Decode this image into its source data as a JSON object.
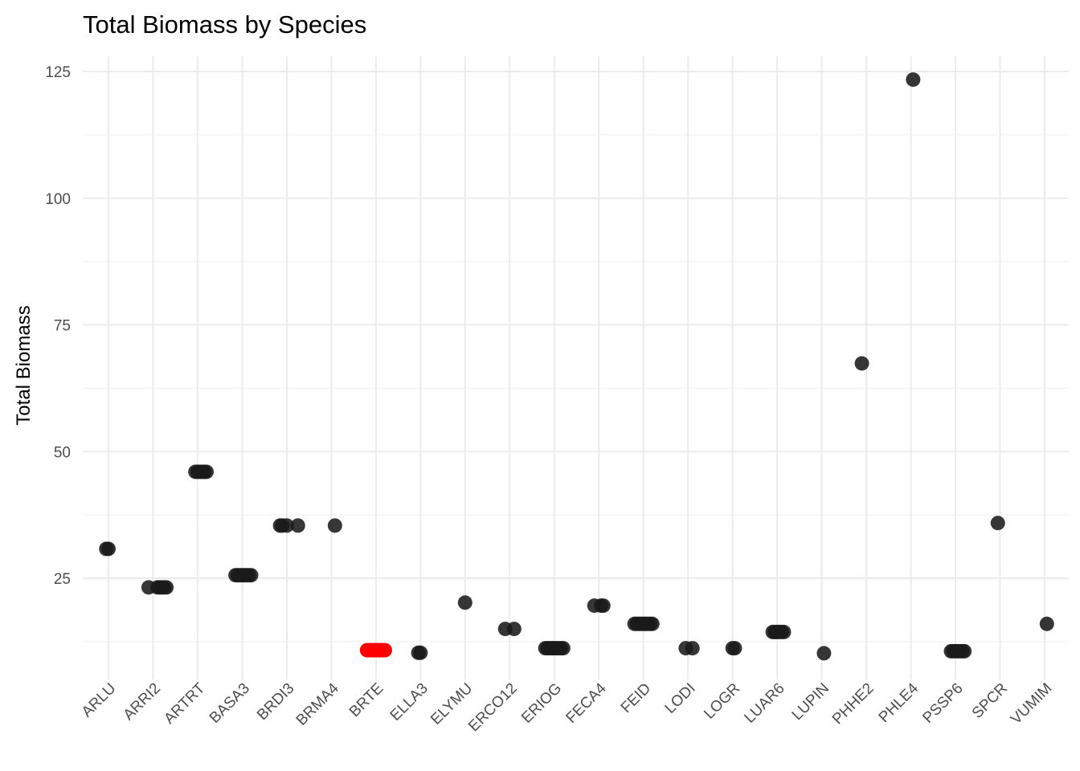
{
  "chart_data": {
    "type": "scatter",
    "title": "Total Biomass by Species",
    "xlabel": "",
    "ylabel": "Total Biomass",
    "ylim": [
      5,
      128
    ],
    "y_ticks": [
      25,
      50,
      75,
      100,
      125
    ],
    "y_tick_labels": [
      "25",
      "50",
      "75",
      "100",
      "125"
    ],
    "grid": true,
    "legend": "none",
    "colors": {
      "default": "#1a1a1a",
      "highlight": "#ff0000"
    },
    "categories": [
      "ARLU",
      "ARRI2",
      "ARTRT",
      "BASA3",
      "BRDI3",
      "BRMA4",
      "BRTE",
      "ELLA3",
      "ELYMU",
      "ERCO12",
      "ERIOG",
      "FECA4",
      "FEID",
      "LODI",
      "LOGR",
      "LUAR6",
      "LUPIN",
      "PHHE2",
      "PHLE4",
      "PSSP6",
      "SPCR",
      "VUMIM"
    ],
    "points": [
      {
        "category": "ARLU",
        "y": 30.8,
        "jitter": -0.05
      },
      {
        "category": "ARLU",
        "y": 30.8,
        "jitter": 0.0
      },
      {
        "category": "ARRI2",
        "y": 23.2,
        "jitter": -0.1
      },
      {
        "category": "ARRI2",
        "y": 23.2,
        "jitter": 0.1
      },
      {
        "category": "ARRI2",
        "y": 23.2,
        "jitter": 0.15
      },
      {
        "category": "ARRI2",
        "y": 23.2,
        "jitter": 0.2
      },
      {
        "category": "ARRI2",
        "y": 23.2,
        "jitter": 0.25
      },
      {
        "category": "ARRI2",
        "y": 23.2,
        "jitter": 0.3
      },
      {
        "category": "ARTRT",
        "y": 46.0,
        "jitter": -0.05
      },
      {
        "category": "ARTRT",
        "y": 46.0,
        "jitter": 0.0
      },
      {
        "category": "ARTRT",
        "y": 46.0,
        "jitter": 0.05
      },
      {
        "category": "ARTRT",
        "y": 46.0,
        "jitter": 0.1
      },
      {
        "category": "ARTRT",
        "y": 46.0,
        "jitter": 0.15
      },
      {
        "category": "ARTRT",
        "y": 46.0,
        "jitter": 0.2
      },
      {
        "category": "BASA3",
        "y": 25.6,
        "jitter": -0.15
      },
      {
        "category": "BASA3",
        "y": 25.6,
        "jitter": -0.1
      },
      {
        "category": "BASA3",
        "y": 25.6,
        "jitter": -0.05
      },
      {
        "category": "BASA3",
        "y": 25.6,
        "jitter": 0.0
      },
      {
        "category": "BASA3",
        "y": 25.6,
        "jitter": 0.05
      },
      {
        "category": "BASA3",
        "y": 25.6,
        "jitter": 0.1
      },
      {
        "category": "BASA3",
        "y": 25.6,
        "jitter": 0.15
      },
      {
        "category": "BASA3",
        "y": 25.6,
        "jitter": 0.2
      },
      {
        "category": "BRDI3",
        "y": 35.4,
        "jitter": -0.15
      },
      {
        "category": "BRDI3",
        "y": 35.4,
        "jitter": -0.1
      },
      {
        "category": "BRDI3",
        "y": 35.4,
        "jitter": 0.0
      },
      {
        "category": "BRDI3",
        "y": 35.4,
        "jitter": 0.25
      },
      {
        "category": "BRMA4",
        "y": 35.4,
        "jitter": 0.08
      },
      {
        "category": "BRTE",
        "y": 10.8,
        "jitter": -0.2
      },
      {
        "category": "BRTE",
        "y": 10.8,
        "jitter": -0.15
      },
      {
        "category": "BRTE",
        "y": 10.8,
        "jitter": -0.1
      },
      {
        "category": "BRTE",
        "y": 10.8,
        "jitter": -0.05
      },
      {
        "category": "BRTE",
        "y": 10.8,
        "jitter": 0.0
      },
      {
        "category": "BRTE",
        "y": 10.8,
        "jitter": 0.05
      },
      {
        "category": "BRTE",
        "y": 10.8,
        "jitter": 0.1
      },
      {
        "category": "BRTE",
        "y": 10.8,
        "jitter": 0.15
      },
      {
        "category": "BRTE",
        "y": 10.8,
        "jitter": 0.2
      },
      {
        "category": "ELLA3",
        "y": 10.3,
        "jitter": -0.05
      },
      {
        "category": "ELLA3",
        "y": 10.3,
        "jitter": 0.0
      },
      {
        "category": "ELYMU",
        "y": 20.2,
        "jitter": 0.0
      },
      {
        "category": "ERCO12",
        "y": 15.0,
        "jitter": -0.1
      },
      {
        "category": "ERCO12",
        "y": 15.0,
        "jitter": 0.1
      },
      {
        "category": "ERIOG",
        "y": 11.2,
        "jitter": -0.2
      },
      {
        "category": "ERIOG",
        "y": 11.2,
        "jitter": -0.15
      },
      {
        "category": "ERIOG",
        "y": 11.2,
        "jitter": -0.1
      },
      {
        "category": "ERIOG",
        "y": 11.2,
        "jitter": -0.05
      },
      {
        "category": "ERIOG",
        "y": 11.2,
        "jitter": 0.0
      },
      {
        "category": "ERIOG",
        "y": 11.2,
        "jitter": 0.05
      },
      {
        "category": "ERIOG",
        "y": 11.2,
        "jitter": 0.1
      },
      {
        "category": "ERIOG",
        "y": 11.2,
        "jitter": 0.15
      },
      {
        "category": "ERIOG",
        "y": 11.2,
        "jitter": 0.2
      },
      {
        "category": "FECA4",
        "y": 19.6,
        "jitter": -0.1
      },
      {
        "category": "FECA4",
        "y": 19.6,
        "jitter": 0.05
      },
      {
        "category": "FECA4",
        "y": 19.6,
        "jitter": 0.1
      },
      {
        "category": "FEID",
        "y": 16.0,
        "jitter": -0.2
      },
      {
        "category": "FEID",
        "y": 16.0,
        "jitter": -0.15
      },
      {
        "category": "FEID",
        "y": 16.0,
        "jitter": -0.1
      },
      {
        "category": "FEID",
        "y": 16.0,
        "jitter": -0.05
      },
      {
        "category": "FEID",
        "y": 16.0,
        "jitter": 0.0
      },
      {
        "category": "FEID",
        "y": 16.0,
        "jitter": 0.05
      },
      {
        "category": "FEID",
        "y": 16.0,
        "jitter": 0.1
      },
      {
        "category": "FEID",
        "y": 16.0,
        "jitter": 0.15
      },
      {
        "category": "FEID",
        "y": 16.0,
        "jitter": 0.2
      },
      {
        "category": "LODI",
        "y": 11.2,
        "jitter": -0.05
      },
      {
        "category": "LODI",
        "y": 11.2,
        "jitter": 0.1
      },
      {
        "category": "LOGR",
        "y": 11.2,
        "jitter": 0.0
      },
      {
        "category": "LOGR",
        "y": 11.2,
        "jitter": 0.05
      },
      {
        "category": "LUAR6",
        "y": 14.4,
        "jitter": -0.1
      },
      {
        "category": "LUAR6",
        "y": 14.4,
        "jitter": -0.05
      },
      {
        "category": "LUAR6",
        "y": 14.4,
        "jitter": 0.0
      },
      {
        "category": "LUAR6",
        "y": 14.4,
        "jitter": 0.05
      },
      {
        "category": "LUAR6",
        "y": 14.4,
        "jitter": 0.1
      },
      {
        "category": "LUAR6",
        "y": 14.4,
        "jitter": 0.15
      },
      {
        "category": "LUPIN",
        "y": 10.2,
        "jitter": 0.05
      },
      {
        "category": "PHHE2",
        "y": 67.4,
        "jitter": -0.1
      },
      {
        "category": "PHLE4",
        "y": 123.4,
        "jitter": 0.05
      },
      {
        "category": "PSSP6",
        "y": 10.6,
        "jitter": -0.1
      },
      {
        "category": "PSSP6",
        "y": 10.6,
        "jitter": -0.05
      },
      {
        "category": "PSSP6",
        "y": 10.6,
        "jitter": 0.0
      },
      {
        "category": "PSSP6",
        "y": 10.6,
        "jitter": 0.05
      },
      {
        "category": "PSSP6",
        "y": 10.6,
        "jitter": 0.1
      },
      {
        "category": "PSSP6",
        "y": 10.6,
        "jitter": 0.15
      },
      {
        "category": "PSSP6",
        "y": 10.6,
        "jitter": 0.2
      },
      {
        "category": "SPCR",
        "y": 35.9,
        "jitter": -0.05
      },
      {
        "category": "VUMIM",
        "y": 16.0,
        "jitter": 0.05
      }
    ],
    "highlight_category": "BRTE"
  }
}
